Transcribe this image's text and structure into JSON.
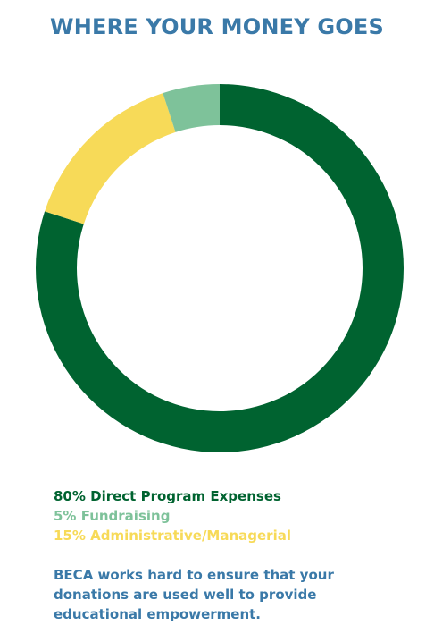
{
  "title": "WHERE YOUR MONEY GOES",
  "chart_data": {
    "type": "pie",
    "style": "donut",
    "categories": [
      "Direct Program Expenses",
      "Fundraising",
      "Administrative/Managerial"
    ],
    "values": [
      80,
      5,
      15
    ],
    "colors": [
      "#006330",
      "#7ec29a",
      "#f7da58"
    ],
    "legend_labels": [
      "80% Direct Program Expenses",
      "5% Fundraising",
      "15% Administrative/Managerial"
    ],
    "legend_placement": "bottom-left",
    "start": "12 o'clock, clockwise"
  },
  "note": "BECA works hard to ensure that your donations are used well to provide educational empowerment."
}
